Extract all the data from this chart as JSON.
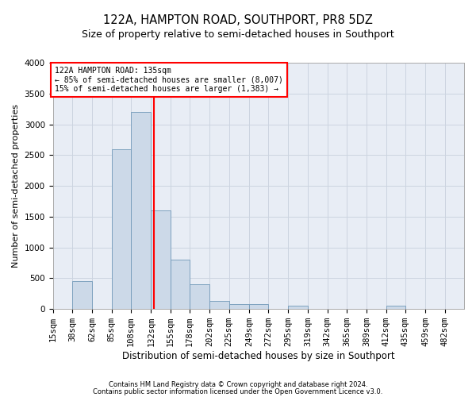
{
  "title1": "122A, HAMPTON ROAD, SOUTHPORT, PR8 5DZ",
  "title2": "Size of property relative to semi-detached houses in Southport",
  "xlabel": "Distribution of semi-detached houses by size in Southport",
  "ylabel": "Number of semi-detached properties",
  "footer1": "Contains HM Land Registry data © Crown copyright and database right 2024.",
  "footer2": "Contains public sector information licensed under the Open Government Licence v3.0.",
  "annotation_line1": "122A HAMPTON ROAD: 135sqm",
  "annotation_line2": "← 85% of semi-detached houses are smaller (8,007)",
  "annotation_line3": "15% of semi-detached houses are larger (1,383) →",
  "bar_color": "#ccd9e8",
  "bar_edge_color": "#7098b8",
  "red_line_x": 135,
  "categories": [
    "15sqm",
    "38sqm",
    "62sqm",
    "85sqm",
    "108sqm",
    "132sqm",
    "155sqm",
    "178sqm",
    "202sqm",
    "225sqm",
    "249sqm",
    "272sqm",
    "295sqm",
    "319sqm",
    "342sqm",
    "365sqm",
    "389sqm",
    "412sqm",
    "435sqm",
    "459sqm",
    "482sqm"
  ],
  "bin_edges": [
    15,
    38,
    62,
    85,
    108,
    132,
    155,
    178,
    202,
    225,
    249,
    272,
    295,
    319,
    342,
    365,
    389,
    412,
    435,
    459,
    482,
    505
  ],
  "values": [
    0,
    450,
    5,
    2600,
    3200,
    1600,
    800,
    400,
    130,
    80,
    80,
    5,
    50,
    5,
    5,
    5,
    5,
    50,
    5,
    5,
    5
  ],
  "ylim": [
    0,
    4000
  ],
  "yticks": [
    0,
    500,
    1000,
    1500,
    2000,
    2500,
    3000,
    3500,
    4000
  ],
  "grid_color": "#ccd4e0",
  "bg_color": "#e8edf5",
  "title1_fontsize": 10.5,
  "title2_fontsize": 9,
  "xlabel_fontsize": 8.5,
  "ylabel_fontsize": 8,
  "tick_fontsize": 7.5,
  "annotation_fontsize": 7,
  "footer_fontsize": 6
}
